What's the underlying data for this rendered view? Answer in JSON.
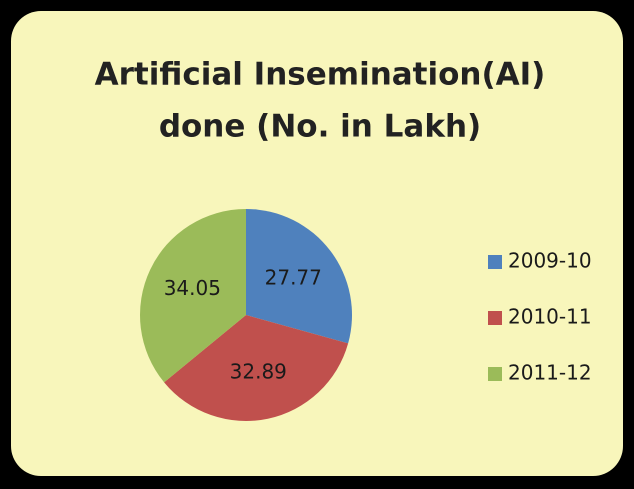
{
  "chart_data": {
    "type": "pie",
    "title": [
      "Artificial Insemination(AI)",
      "done (No. in Lakh)"
    ],
    "categories": [
      "2009-10",
      "2010-11",
      "2011-12"
    ],
    "values": [
      27.77,
      32.89,
      34.05
    ],
    "colors": [
      "#4f81bd",
      "#c0504d",
      "#9bbb59"
    ],
    "legend": "right"
  }
}
